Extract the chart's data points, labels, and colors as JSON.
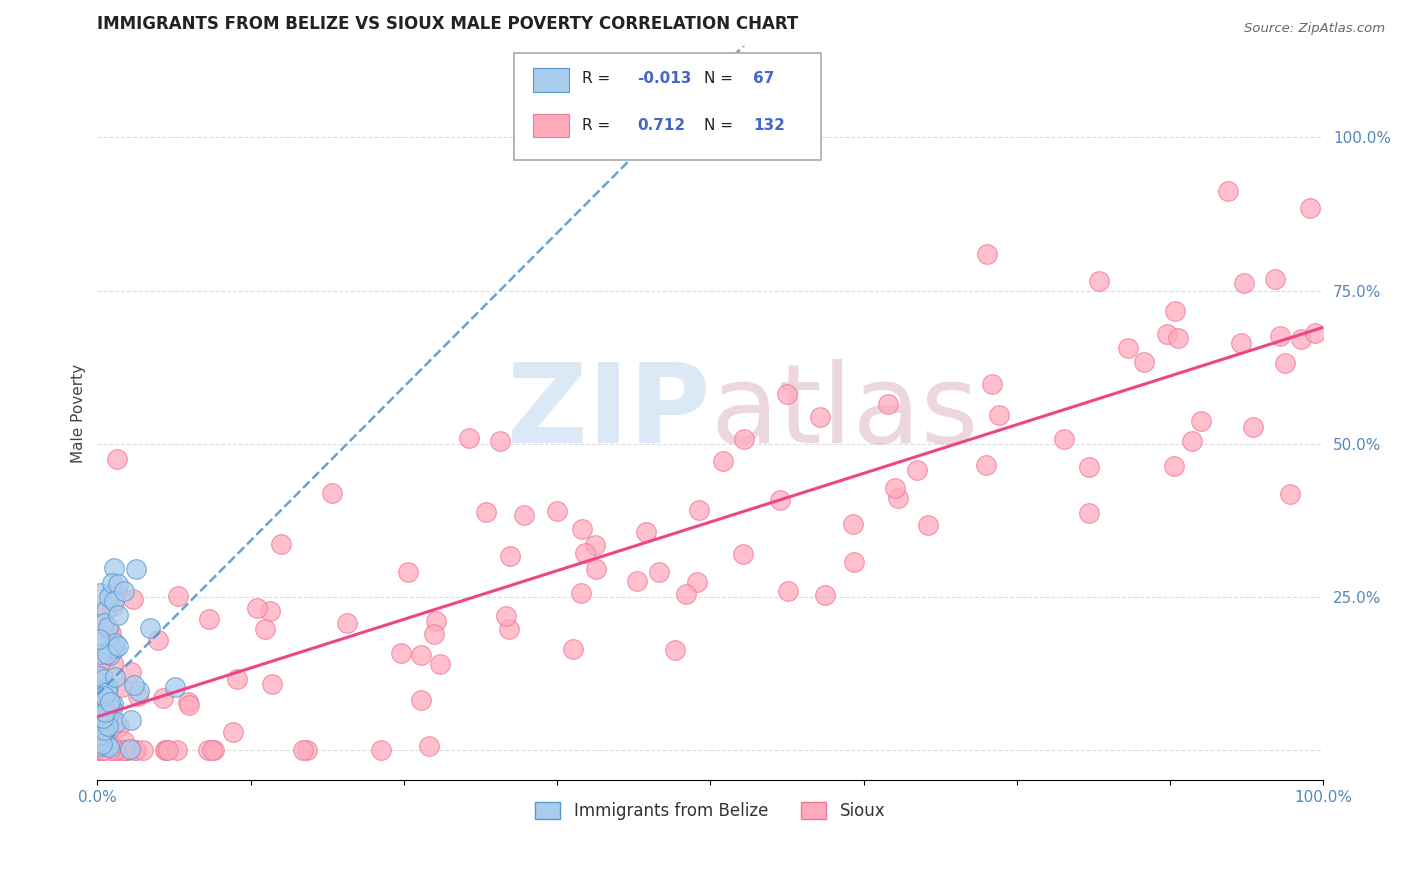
{
  "title": "IMMIGRANTS FROM BELIZE VS SIOUX MALE POVERTY CORRELATION CHART",
  "source": "Source: ZipAtlas.com",
  "ylabel": "Male Poverty",
  "xlim": [
    0,
    1
  ],
  "ylim": [
    -0.05,
    1.15
  ],
  "yticks": [
    0.0,
    0.25,
    0.5,
    0.75,
    1.0
  ],
  "ytick_labels": [
    "",
    "25.0%",
    "50.0%",
    "75.0%",
    "100.0%"
  ],
  "legend_blue_r": "-0.013",
  "legend_blue_n": "67",
  "legend_pink_r": "0.712",
  "legend_pink_n": "132",
  "blue_fill": "#aaccee",
  "blue_edge": "#5599cc",
  "pink_fill": "#ffaabb",
  "pink_edge": "#ee7799",
  "blue_trend_color": "#5599cc",
  "pink_trend_color": "#ee4488",
  "watermark_zip_color": "#b8d4ee",
  "watermark_atlas_color": "#ddb0c0",
  "background": "#ffffff",
  "grid_color": "#dddddd",
  "tick_color": "#5588bb",
  "title_color": "#222222",
  "source_color": "#666666",
  "legend_text_color": "#222222",
  "legend_value_color": "#4466cc"
}
